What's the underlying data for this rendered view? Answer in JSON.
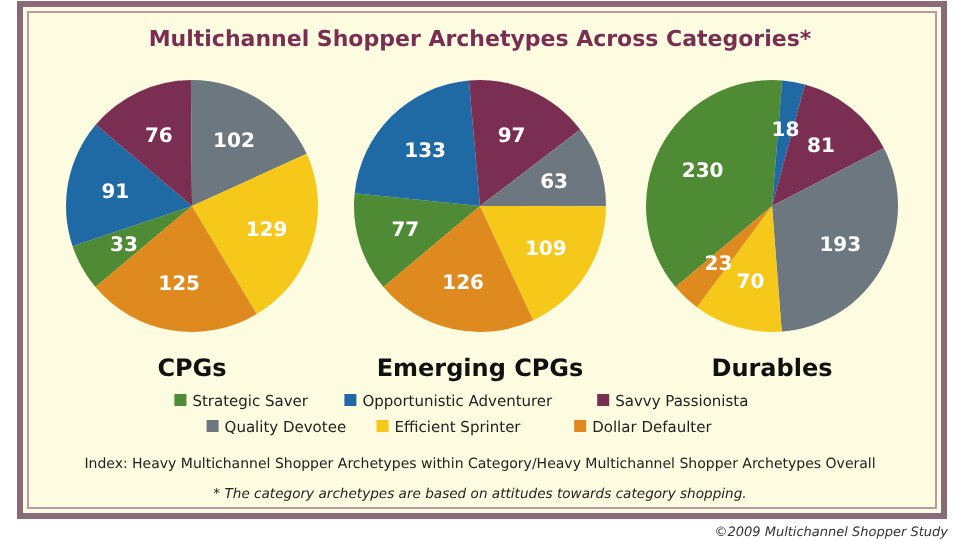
{
  "chart_data": [
    {
      "type": "pie",
      "title": "CPGs",
      "categories": [
        "Strategic Saver",
        "Opportunistic Adventurer",
        "Savvy Passionista",
        "Quality Devotee",
        "Efficient Sprinter",
        "Dollar Defaulter"
      ],
      "values": [
        33,
        91,
        76,
        102,
        129,
        125
      ],
      "colors": [
        "#4f8a34",
        "#1f6aa5",
        "#7a2e52",
        "#6d7780",
        "#f5c81a",
        "#de8a1e"
      ],
      "data_labels": true,
      "legend": "bottom"
    },
    {
      "type": "pie",
      "title": "Emerging CPGs",
      "categories": [
        null,
        null,
        null,
        null,
        null,
        null
      ],
      "values": [
        77,
        133,
        97,
        63,
        109,
        126
      ],
      "colors": [
        "#4f8a34",
        "#1f6aa5",
        "#7a2e52",
        "#6d7780",
        "#f5c81a",
        "#de8a1e"
      ],
      "data_labels": true
    },
    {
      "type": "pie",
      "title": "Durables",
      "categories": [
        null,
        null,
        null,
        null,
        null,
        null
      ],
      "values": [
        230,
        18,
        81,
        193,
        70,
        23
      ],
      "colors": [
        "#4f8a34",
        "#1f6aa5",
        "#7a2e52",
        "#6d7780",
        "#f5c81a",
        "#de8a1e"
      ],
      "data_labels": true
    },
    {
      "type": "other",
      "title": "Multichannel Shopper Archetypes Across Categories*",
      "annotations": [
        "Index: Heavy Multichannel Shopper Archetypes within Category/Heavy Multichannel Shopper Archetypes Overall",
        "* The category archetypes are based on attitudes towards category shopping.",
        "©2009 Multichannel Shopper Study"
      ]
    }
  ]
}
